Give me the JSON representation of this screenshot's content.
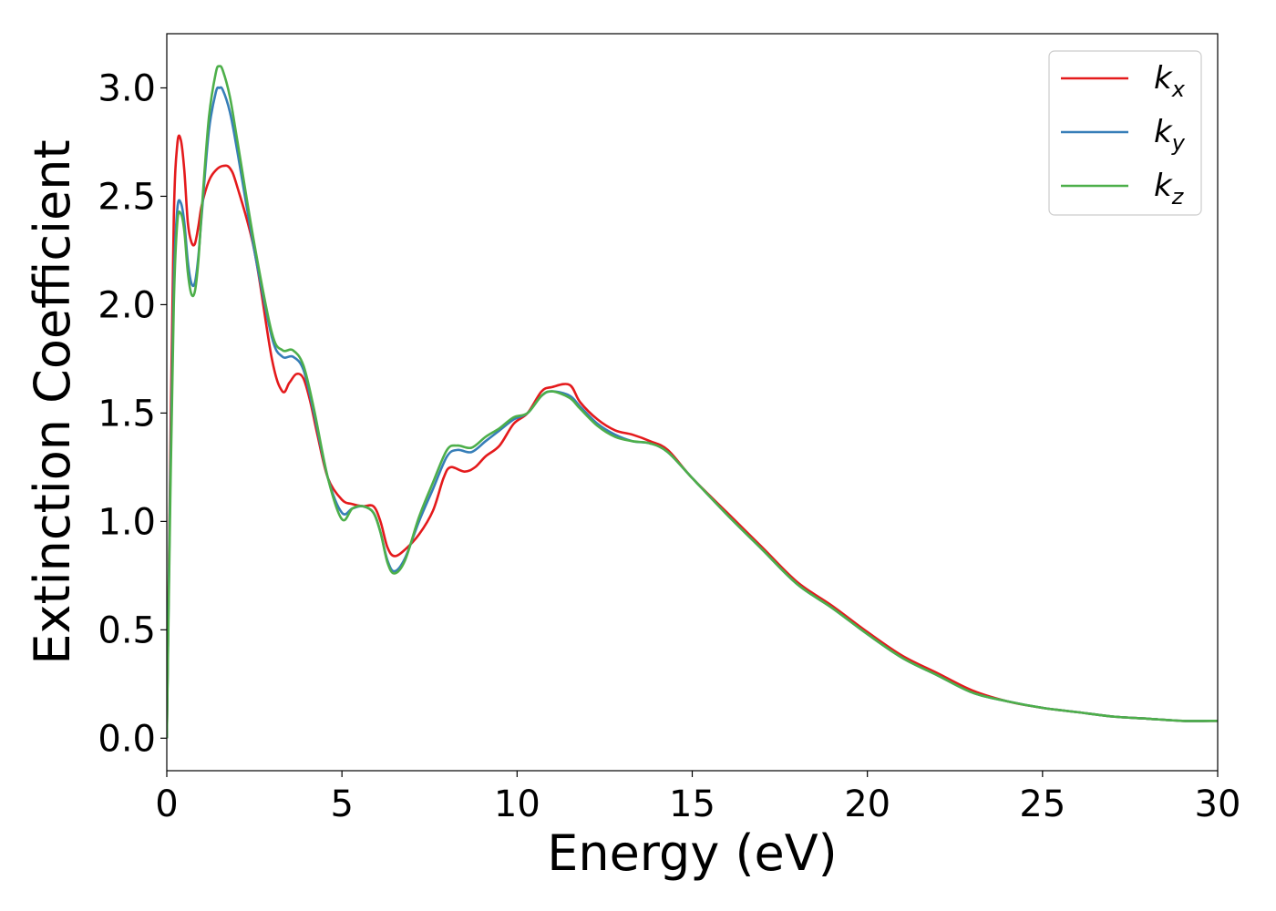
{
  "chart_data": {
    "type": "line",
    "xlabel": "Energy (eV)",
    "ylabel": "Extinction Coefficient",
    "xlim": [
      0,
      30
    ],
    "ylim": [
      -0.15,
      3.25
    ],
    "xticks": [
      0,
      5,
      10,
      15,
      20,
      25,
      30
    ],
    "xtick_labels": [
      "0",
      "5",
      "10",
      "15",
      "20",
      "25",
      "30"
    ],
    "yticks": [
      0.0,
      0.5,
      1.0,
      1.5,
      2.0,
      2.5,
      3.0
    ],
    "ytick_labels": [
      "0.0",
      "0.5",
      "1.0",
      "1.5",
      "2.0",
      "2.5",
      "3.0"
    ],
    "grid": false,
    "legend_position": "top-right",
    "series": [
      {
        "name": "k",
        "subscript": "x",
        "color": "#e41a1c",
        "points": [
          [
            0,
            0
          ],
          [
            0.1,
            1.3
          ],
          [
            0.2,
            2.4
          ],
          [
            0.3,
            2.74
          ],
          [
            0.4,
            2.76
          ],
          [
            0.5,
            2.62
          ],
          [
            0.6,
            2.38
          ],
          [
            0.7,
            2.29
          ],
          [
            0.8,
            2.28
          ],
          [
            0.9,
            2.36
          ],
          [
            1.0,
            2.46
          ],
          [
            1.2,
            2.57
          ],
          [
            1.4,
            2.62
          ],
          [
            1.6,
            2.64
          ],
          [
            1.8,
            2.63
          ],
          [
            2.0,
            2.55
          ],
          [
            2.5,
            2.25
          ],
          [
            3.0,
            1.75
          ],
          [
            3.3,
            1.6
          ],
          [
            3.5,
            1.64
          ],
          [
            3.7,
            1.68
          ],
          [
            3.9,
            1.66
          ],
          [
            4.1,
            1.55
          ],
          [
            4.3,
            1.4
          ],
          [
            4.6,
            1.2
          ],
          [
            5.0,
            1.1
          ],
          [
            5.3,
            1.08
          ],
          [
            5.6,
            1.07
          ],
          [
            5.9,
            1.07
          ],
          [
            6.1,
            1.0
          ],
          [
            6.3,
            0.88
          ],
          [
            6.5,
            0.84
          ],
          [
            6.8,
            0.87
          ],
          [
            7.2,
            0.94
          ],
          [
            7.6,
            1.05
          ],
          [
            7.9,
            1.2
          ],
          [
            8.1,
            1.25
          ],
          [
            8.5,
            1.23
          ],
          [
            8.8,
            1.25
          ],
          [
            9.1,
            1.3
          ],
          [
            9.5,
            1.35
          ],
          [
            9.9,
            1.45
          ],
          [
            10.3,
            1.5
          ],
          [
            10.7,
            1.6
          ],
          [
            11.0,
            1.62
          ],
          [
            11.5,
            1.63
          ],
          [
            11.8,
            1.55
          ],
          [
            12.3,
            1.47
          ],
          [
            12.8,
            1.42
          ],
          [
            13.3,
            1.4
          ],
          [
            13.8,
            1.37
          ],
          [
            14.3,
            1.33
          ],
          [
            15.0,
            1.2
          ],
          [
            16.0,
            1.04
          ],
          [
            17.0,
            0.88
          ],
          [
            18.0,
            0.72
          ],
          [
            19.0,
            0.61
          ],
          [
            20.0,
            0.49
          ],
          [
            21.0,
            0.38
          ],
          [
            22.0,
            0.3
          ],
          [
            23.0,
            0.22
          ],
          [
            24.0,
            0.17
          ],
          [
            25.0,
            0.14
          ],
          [
            26.0,
            0.12
          ],
          [
            27.0,
            0.1
          ],
          [
            28.0,
            0.09
          ],
          [
            29.0,
            0.08
          ],
          [
            30.0,
            0.08
          ]
        ]
      },
      {
        "name": "k",
        "subscript": "y",
        "color": "#377eb8",
        "points": [
          [
            0,
            0
          ],
          [
            0.1,
            1.2
          ],
          [
            0.2,
            2.1
          ],
          [
            0.3,
            2.44
          ],
          [
            0.4,
            2.47
          ],
          [
            0.5,
            2.38
          ],
          [
            0.6,
            2.2
          ],
          [
            0.7,
            2.1
          ],
          [
            0.8,
            2.1
          ],
          [
            0.9,
            2.22
          ],
          [
            1.0,
            2.42
          ],
          [
            1.2,
            2.8
          ],
          [
            1.4,
            2.98
          ],
          [
            1.5,
            3.0
          ],
          [
            1.6,
            2.99
          ],
          [
            1.8,
            2.89
          ],
          [
            2.0,
            2.72
          ],
          [
            2.5,
            2.25
          ],
          [
            3.0,
            1.85
          ],
          [
            3.3,
            1.76
          ],
          [
            3.6,
            1.76
          ],
          [
            3.9,
            1.7
          ],
          [
            4.2,
            1.5
          ],
          [
            4.6,
            1.2
          ],
          [
            5.0,
            1.04
          ],
          [
            5.3,
            1.06
          ],
          [
            5.6,
            1.07
          ],
          [
            5.9,
            1.04
          ],
          [
            6.1,
            0.95
          ],
          [
            6.3,
            0.82
          ],
          [
            6.5,
            0.77
          ],
          [
            6.8,
            0.83
          ],
          [
            7.2,
            1.0
          ],
          [
            7.6,
            1.15
          ],
          [
            8.0,
            1.3
          ],
          [
            8.3,
            1.33
          ],
          [
            8.7,
            1.32
          ],
          [
            9.1,
            1.37
          ],
          [
            9.5,
            1.42
          ],
          [
            9.9,
            1.47
          ],
          [
            10.3,
            1.5
          ],
          [
            10.7,
            1.58
          ],
          [
            11.0,
            1.6
          ],
          [
            11.5,
            1.58
          ],
          [
            11.8,
            1.53
          ],
          [
            12.3,
            1.45
          ],
          [
            12.8,
            1.4
          ],
          [
            13.3,
            1.37
          ],
          [
            13.8,
            1.36
          ],
          [
            14.3,
            1.32
          ],
          [
            15.0,
            1.2
          ],
          [
            16.0,
            1.03
          ],
          [
            17.0,
            0.87
          ],
          [
            18.0,
            0.71
          ],
          [
            19.0,
            0.6
          ],
          [
            20.0,
            0.48
          ],
          [
            21.0,
            0.37
          ],
          [
            22.0,
            0.29
          ],
          [
            23.0,
            0.21
          ],
          [
            24.0,
            0.17
          ],
          [
            25.0,
            0.14
          ],
          [
            26.0,
            0.12
          ],
          [
            27.0,
            0.1
          ],
          [
            28.0,
            0.09
          ],
          [
            29.0,
            0.08
          ],
          [
            30.0,
            0.08
          ]
        ]
      },
      {
        "name": "k",
        "subscript": "z",
        "color": "#4daf4a",
        "points": [
          [
            0,
            0
          ],
          [
            0.1,
            1.1
          ],
          [
            0.2,
            2.0
          ],
          [
            0.3,
            2.38
          ],
          [
            0.4,
            2.42
          ],
          [
            0.5,
            2.34
          ],
          [
            0.6,
            2.15
          ],
          [
            0.7,
            2.05
          ],
          [
            0.8,
            2.06
          ],
          [
            0.9,
            2.2
          ],
          [
            1.0,
            2.44
          ],
          [
            1.2,
            2.86
          ],
          [
            1.4,
            3.07
          ],
          [
            1.5,
            3.1
          ],
          [
            1.6,
            3.08
          ],
          [
            1.8,
            2.96
          ],
          [
            2.0,
            2.77
          ],
          [
            2.5,
            2.28
          ],
          [
            3.0,
            1.87
          ],
          [
            3.3,
            1.79
          ],
          [
            3.6,
            1.79
          ],
          [
            3.9,
            1.72
          ],
          [
            4.2,
            1.52
          ],
          [
            4.6,
            1.2
          ],
          [
            5.0,
            1.01
          ],
          [
            5.3,
            1.06
          ],
          [
            5.6,
            1.07
          ],
          [
            5.9,
            1.04
          ],
          [
            6.1,
            0.95
          ],
          [
            6.3,
            0.81
          ],
          [
            6.5,
            0.76
          ],
          [
            6.8,
            0.82
          ],
          [
            7.2,
            1.02
          ],
          [
            7.6,
            1.18
          ],
          [
            8.0,
            1.33
          ],
          [
            8.3,
            1.35
          ],
          [
            8.7,
            1.34
          ],
          [
            9.1,
            1.39
          ],
          [
            9.5,
            1.43
          ],
          [
            9.9,
            1.48
          ],
          [
            10.3,
            1.5
          ],
          [
            10.7,
            1.58
          ],
          [
            11.0,
            1.6
          ],
          [
            11.5,
            1.57
          ],
          [
            11.8,
            1.52
          ],
          [
            12.3,
            1.44
          ],
          [
            12.8,
            1.39
          ],
          [
            13.3,
            1.37
          ],
          [
            13.8,
            1.36
          ],
          [
            14.3,
            1.32
          ],
          [
            15.0,
            1.2
          ],
          [
            16.0,
            1.03
          ],
          [
            17.0,
            0.87
          ],
          [
            18.0,
            0.71
          ],
          [
            19.0,
            0.6
          ],
          [
            20.0,
            0.48
          ],
          [
            21.0,
            0.37
          ],
          [
            22.0,
            0.29
          ],
          [
            23.0,
            0.21
          ],
          [
            24.0,
            0.17
          ],
          [
            25.0,
            0.14
          ],
          [
            26.0,
            0.12
          ],
          [
            27.0,
            0.1
          ],
          [
            28.0,
            0.09
          ],
          [
            29.0,
            0.08
          ],
          [
            30.0,
            0.08
          ]
        ]
      }
    ]
  }
}
